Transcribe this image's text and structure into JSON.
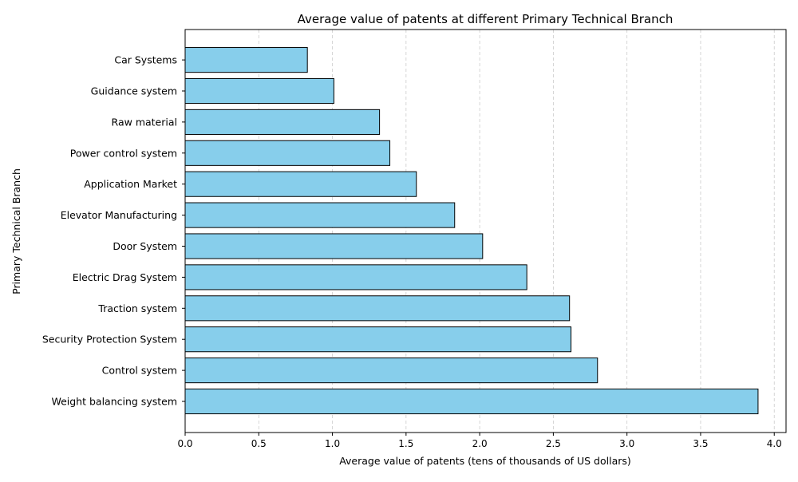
{
  "chart_data": {
    "type": "bar",
    "orientation": "horizontal",
    "title": "Average value of patents at different Primary Technical Branch",
    "xlabel": "Average value of patents (tens of thousands of US dollars)",
    "ylabel": "Primary Technical Branch",
    "categories": [
      "Car Systems",
      "Guidance system",
      "Raw material",
      "Power control system",
      "Application Market",
      "Elevator Manufacturing",
      "Door System",
      "Electric Drag System",
      "Traction system",
      "Security Protection System",
      "Control system",
      "Weight balancing system"
    ],
    "values": [
      0.83,
      1.01,
      1.32,
      1.39,
      1.57,
      1.83,
      2.02,
      2.32,
      2.61,
      2.62,
      2.8,
      3.89
    ],
    "xlim": [
      0,
      4.08
    ],
    "xticks": [
      "0.0",
      "0.5",
      "1.0",
      "1.5",
      "2.0",
      "2.5",
      "3.0",
      "3.5",
      "4.0"
    ],
    "grid": "x-dashed",
    "bar_color": "#87CEEB",
    "bar_edge_color": "#000000",
    "grid_color": "#cccccc"
  }
}
